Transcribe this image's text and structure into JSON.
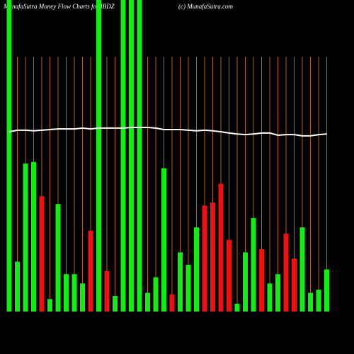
{
  "chart_data": {
    "type": "bar",
    "title": "MunafaSutra  Money Flow  Charts for IBDZ",
    "subtitle": "(c) MunafaSutra.com",
    "categories": [
      null,
      null,
      null,
      null,
      null,
      null,
      null,
      null,
      null,
      null,
      null,
      null,
      null,
      null,
      null,
      null,
      null,
      null,
      null,
      null,
      null,
      null,
      null,
      null,
      null,
      null,
      null,
      null,
      null,
      null,
      null,
      null,
      null,
      null,
      null,
      null,
      null,
      null,
      null,
      null
    ],
    "values": [
      100,
      16,
      47.5,
      48,
      37,
      4,
      34.5,
      12,
      12,
      9,
      26,
      100,
      13,
      5,
      100,
      100,
      100,
      6,
      11,
      46,
      5.5,
      19,
      15,
      27,
      34,
      35,
      41,
      23,
      2.5,
      19,
      30,
      20,
      9,
      12,
      25,
      17,
      27,
      6,
      7,
      13.5
    ],
    "colors": [
      "#11ee11",
      "#11ee11",
      "#11ee11",
      "#11ee11",
      "#ee1111",
      "#11ee11",
      "#11ee11",
      "#11ee11",
      "#11ee11",
      "#11ee11",
      "#ee1111",
      "#11ee11",
      "#ee1111",
      "#11ee11",
      "#11ee11",
      "#11ee11",
      "#11ee11",
      "#11ee11",
      "#11ee11",
      "#11ee11",
      "#ee1111",
      "#11ee11",
      "#11ee11",
      "#11ee11",
      "#ee1111",
      "#ee1111",
      "#ee1111",
      "#ee1111",
      "#11ee11",
      "#11ee11",
      "#11ee11",
      "#ee1111",
      "#11ee11",
      "#11ee11",
      "#ee1111",
      "#ee1111",
      "#11ee11",
      "#11ee11",
      "#11ee11",
      "#11ee11"
    ],
    "line_values": [
      57.7,
      58.2,
      58.2,
      58.0,
      58.2,
      58.4,
      58.6,
      58.6,
      58.6,
      58.9,
      58.6,
      58.9,
      58.9,
      58.9,
      58.9,
      59.1,
      59.1,
      59.1,
      58.9,
      58.4,
      58.4,
      58.4,
      58.2,
      58.0,
      58.2,
      58.0,
      57.7,
      57.3,
      57.0,
      56.8,
      57.0,
      57.3,
      57.3,
      56.6,
      56.8,
      56.8,
      56.4,
      56.4,
      56.8,
      57.0
    ],
    "line_color": "#ffffff",
    "grid_color": "#b8640a",
    "ylim": [
      0,
      100
    ]
  }
}
